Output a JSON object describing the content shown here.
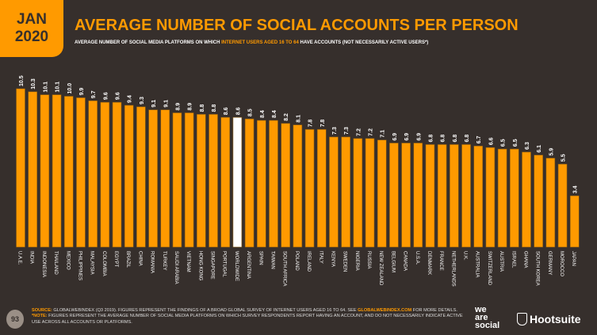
{
  "header": {
    "date_line1": "JAN",
    "date_line2": "2020",
    "title": "AVERAGE NUMBER OF SOCIAL ACCOUNTS PER PERSON",
    "subtitle_a": "AVERAGE NUMBER OF SOCIAL MEDIA PLATFORMS ON WHICH ",
    "subtitle_highlight": "INTERNET USERS AGED 16 TO 64",
    "subtitle_b": " HAVE ACCOUNTS (NOT NECESSARILY ACTIVE USERS*)"
  },
  "chart_data": {
    "type": "bar",
    "title": "AVERAGE NUMBER OF SOCIAL ACCOUNTS PER PERSON",
    "categories": [
      "U.A.E.",
      "INDIA",
      "INDONESIA",
      "THAILAND",
      "MEXICO",
      "PHILIPPINES",
      "MALAYSIA",
      "COLOMBIA",
      "EGYPT",
      "BRAZIL",
      "CHINA",
      "ROMANIA",
      "TURKEY",
      "SAUDI ARABIA",
      "VIETNAM",
      "HONG KONG",
      "SINGAPORE",
      "PORTUGAL",
      "WORLDWIDE",
      "ARGENTINA",
      "SPAIN",
      "TAIWAN",
      "SOUTH AFRICA",
      "POLAND",
      "IRELAND",
      "ITALY",
      "KENYA",
      "SWEDEN",
      "NIGERIA",
      "RUSSIA",
      "NEW ZEALAND",
      "BELGIUM",
      "CANADA",
      "U.S.A.",
      "DENMARK",
      "FRANCE",
      "NETHERLANDS",
      "U.K.",
      "AUSTRALIA",
      "SWITZERLAND",
      "AUSTRIA",
      "ISRAEL",
      "GHANA",
      "SOUTH KOREA",
      "GERMANY",
      "MOROCCO",
      "JAPAN"
    ],
    "values": [
      10.5,
      10.3,
      10.1,
      10.1,
      10.0,
      9.9,
      9.7,
      9.6,
      9.6,
      9.4,
      9.3,
      9.1,
      9.1,
      8.9,
      8.9,
      8.8,
      8.8,
      8.6,
      8.6,
      8.5,
      8.4,
      8.4,
      8.2,
      8.1,
      7.8,
      7.8,
      7.3,
      7.3,
      7.2,
      7.2,
      7.1,
      6.9,
      6.9,
      6.9,
      6.8,
      6.8,
      6.8,
      6.8,
      6.7,
      6.6,
      6.5,
      6.5,
      6.3,
      6.1,
      5.9,
      5.5,
      3.4
    ],
    "highlight_category": "WORLDWIDE",
    "ylim": [
      0,
      10.5
    ],
    "colors": {
      "bar": "#ff9a00",
      "highlight": "#ffffff",
      "background": "#362f2c"
    },
    "grid": false
  },
  "footer": {
    "page": "93",
    "source_label": "SOURCE:",
    "source_a": " GLOBALWEBINDEX (Q3 2019). FIGURES REPRESENT THE FINDINGS OF A BROAD GLOBAL SURVEY OF INTERNET USERS AGED 16 TO 64. SEE ",
    "source_link": "GLOBALWEBINDEX.COM",
    "source_b": " FOR MORE DETAILS. ",
    "note_label": "*NOTE:",
    "note": " FIGURES REPRESENT THE AVERAGE NUMBER OF SOCIAL MEDIA PLATFORMS ON WHICH SURVEY RESPONDENTS REPORT HAVING AN ACCOUNT, AND DO NOT NECESSARILY INDICATE ACTIVE USE ACROSS ALL ACCOUNTS OR PLATFORMS."
  },
  "logos": {
    "we_are_social": "we are social",
    "hootsuite": "Hootsuite"
  }
}
